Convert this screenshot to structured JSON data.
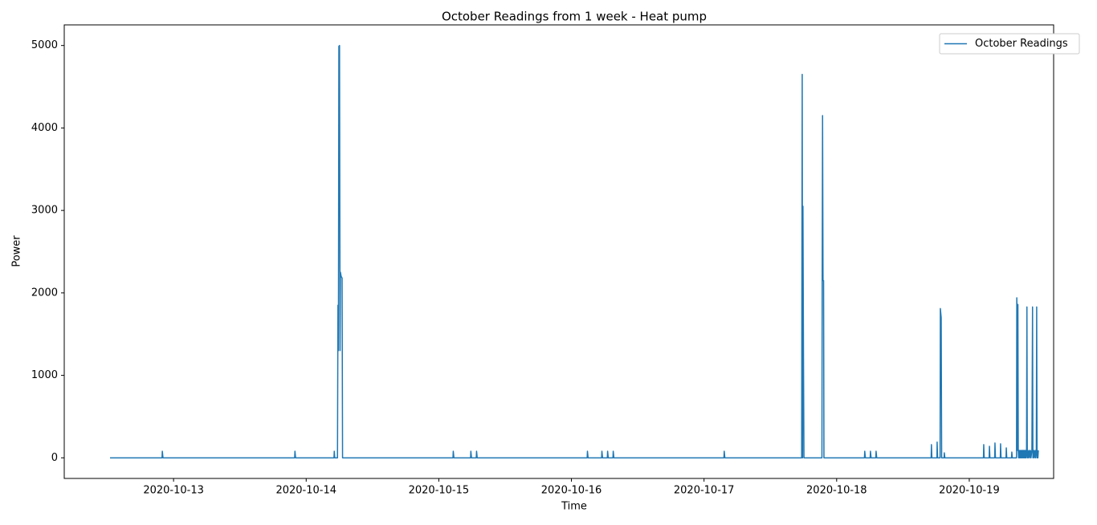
{
  "chart_data": {
    "type": "line",
    "title": "October Readings from 1 week - Heat pump",
    "xlabel": "Time",
    "ylabel": "Power",
    "xlim": [
      "2020-10-12 04:13",
      "2020-10-19 15:16"
    ],
    "xticks": [
      "2020-10-13",
      "2020-10-14",
      "2020-10-15",
      "2020-10-16",
      "2020-10-17",
      "2020-10-18",
      "2020-10-19"
    ],
    "ylim": [
      -250,
      5250
    ],
    "yticks": [
      0,
      1000,
      2000,
      3000,
      4000,
      5000
    ],
    "grid": false,
    "legend": "upper right",
    "x": [
      "2020-10-12 12:30",
      "2020-10-12 21:55",
      "2020-10-12 21:58",
      "2020-10-12 22:05",
      "2020-10-13 21:55",
      "2020-10-13 21:58",
      "2020-10-13 22:05",
      "2020-10-14 05:02",
      "2020-10-14 05:05",
      "2020-10-14 05:10",
      "2020-10-14 05:40",
      "2020-10-14 05:45",
      "2020-10-14 05:50",
      "2020-10-14 05:55",
      "2020-10-14 06:02",
      "2020-10-14 06:08",
      "2020-10-14 06:12",
      "2020-10-14 06:20",
      "2020-10-14 06:30",
      "2020-10-14 06:35",
      "2020-10-15 02:34",
      "2020-10-15 02:37",
      "2020-10-15 02:44",
      "2020-10-15 05:45",
      "2020-10-15 05:48",
      "2020-10-15 05:55",
      "2020-10-15 06:47",
      "2020-10-15 06:50",
      "2020-10-15 06:57",
      "2020-10-16 02:51",
      "2020-10-16 02:54",
      "2020-10-16 03:01",
      "2020-10-16 05:28",
      "2020-10-16 05:31",
      "2020-10-16 05:38",
      "2020-10-16 06:30",
      "2020-10-16 06:33",
      "2020-10-16 06:40",
      "2020-10-16 07:31",
      "2020-10-16 07:34",
      "2020-10-16 07:41",
      "2020-10-17 03:36",
      "2020-10-17 03:39",
      "2020-10-17 03:46",
      "2020-10-17 17:40",
      "2020-10-17 17:42",
      "2020-10-17 17:46",
      "2020-10-17 17:50",
      "2020-10-17 17:54",
      "2020-10-17 18:00",
      "2020-10-17 18:05",
      "2020-10-17 21:20",
      "2020-10-17 21:23",
      "2020-10-17 21:27",
      "2020-10-17 21:32",
      "2020-10-17 21:38",
      "2020-10-17 21:42",
      "2020-10-18 05:02",
      "2020-10-18 05:05",
      "2020-10-18 05:12",
      "2020-10-18 06:04",
      "2020-10-18 06:07",
      "2020-10-18 06:14",
      "2020-10-18 07:05",
      "2020-10-18 07:08",
      "2020-10-18 07:15",
      "2020-10-18 17:06",
      "2020-10-18 17:09",
      "2020-10-18 17:14",
      "2020-10-18 18:09",
      "2020-10-18 18:11",
      "2020-10-18 18:16",
      "2020-10-18 18:43",
      "2020-10-18 18:46",
      "2020-10-18 18:55",
      "2020-10-18 19:00",
      "2020-10-18 19:27",
      "2020-10-18 19:29",
      "2020-10-18 19:35",
      "2020-10-19 02:34",
      "2020-10-19 02:37",
      "2020-10-19 02:42",
      "2020-10-19 03:36",
      "2020-10-19 03:39",
      "2020-10-19 03:44",
      "2020-10-19 04:36",
      "2020-10-19 04:39",
      "2020-10-19 04:44",
      "2020-10-19 05:37",
      "2020-10-19 05:40",
      "2020-10-19 05:45",
      "2020-10-19 06:39",
      "2020-10-19 06:42",
      "2020-10-19 06:47",
      "2020-10-19 07:39",
      "2020-10-19 07:42",
      "2020-10-19 07:47",
      "2020-10-19 08:33",
      "2020-10-19 08:36",
      "2020-10-19 08:40",
      "2020-10-19 08:45",
      "2020-10-19 08:48",
      "2020-10-19 08:52",
      "2020-10-19 08:56",
      "2020-10-19 09:00",
      "2020-10-19 09:05",
      "2020-10-19 09:10",
      "2020-10-19 09:15",
      "2020-10-19 09:20",
      "2020-10-19 09:25",
      "2020-10-19 09:30",
      "2020-10-19 09:35",
      "2020-10-19 09:40",
      "2020-10-19 09:45",
      "2020-10-19 09:50",
      "2020-10-19 09:55",
      "2020-10-19 10:00",
      "2020-10-19 10:05",
      "2020-10-19 10:10",
      "2020-10-19 10:15",
      "2020-10-19 10:22",
      "2020-10-19 10:26",
      "2020-10-19 10:30",
      "2020-10-19 10:35",
      "2020-10-19 10:40",
      "2020-10-19 10:50",
      "2020-10-19 10:55",
      "2020-10-19 11:05",
      "2020-10-19 11:10",
      "2020-10-19 11:20",
      "2020-10-19 11:27",
      "2020-10-19 11:31",
      "2020-10-19 11:40",
      "2020-10-19 11:45",
      "2020-10-19 11:55",
      "2020-10-19 12:00",
      "2020-10-19 12:08",
      "2020-10-19 12:12",
      "2020-10-19 12:16",
      "2020-10-19 12:20",
      "2020-10-19 12:25",
      "2020-10-19 12:30"
    ],
    "series": [
      {
        "name": "October Readings",
        "color": "#1f77b4",
        "values": [
          0,
          0,
          80,
          0,
          0,
          80,
          0,
          0,
          80,
          0,
          0,
          1850,
          1300,
          4990,
          5000,
          1300,
          2250,
          2200,
          2180,
          0,
          0,
          80,
          0,
          0,
          80,
          0,
          0,
          80,
          0,
          0,
          80,
          0,
          0,
          80,
          0,
          0,
          80,
          0,
          0,
          80,
          0,
          0,
          80,
          0,
          0,
          1850,
          4650,
          0,
          3050,
          1200,
          0,
          0,
          2200,
          4150,
          2150,
          2150,
          0,
          0,
          80,
          0,
          0,
          80,
          0,
          0,
          80,
          0,
          0,
          160,
          0,
          0,
          190,
          0,
          0,
          1810,
          1700,
          0,
          0,
          60,
          0,
          0,
          160,
          0,
          0,
          140,
          0,
          0,
          180,
          0,
          0,
          170,
          0,
          0,
          120,
          0,
          0,
          70,
          0,
          0,
          1940,
          1600,
          90,
          1860,
          90,
          0,
          90,
          0,
          90,
          0,
          90,
          0,
          90,
          0,
          90,
          0,
          90,
          0,
          90,
          0,
          90,
          0,
          90,
          1830,
          0,
          90,
          0,
          90,
          0,
          90,
          0,
          90,
          1830,
          0,
          90,
          0,
          90,
          0,
          90,
          1830,
          0,
          90,
          0,
          90
        ]
      }
    ]
  }
}
